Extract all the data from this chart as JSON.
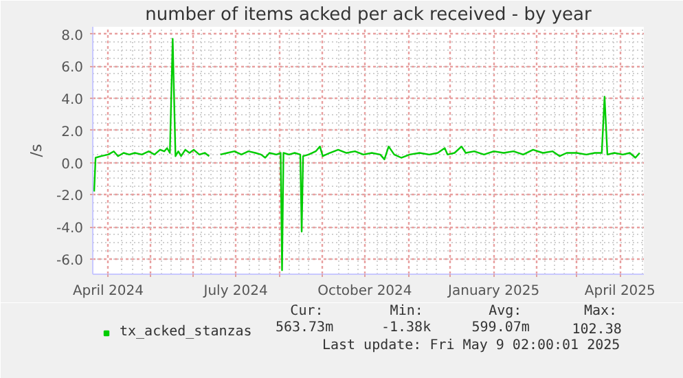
{
  "chart_data": {
    "type": "line",
    "title": "number of items acked per ack received - by year",
    "ylabel": "/s",
    "xlim": [
      "2024-03-21",
      "2025-04-18"
    ],
    "ylim": [
      -6.95,
      8.45
    ],
    "xticks": [
      {
        "value": "2024-04-01",
        "label": "April 2024"
      },
      {
        "value": "2024-05-01",
        "label": null
      },
      {
        "value": "2024-06-01",
        "label": null
      },
      {
        "value": "2024-07-01",
        "label": "July 2024"
      },
      {
        "value": "2024-08-01",
        "label": null
      },
      {
        "value": "2024-09-01",
        "label": null
      },
      {
        "value": "2024-10-01",
        "label": "October 2024"
      },
      {
        "value": "2024-11-01",
        "label": null
      },
      {
        "value": "2024-12-01",
        "label": null
      },
      {
        "value": "2025-01-01",
        "label": "January 2025"
      },
      {
        "value": "2025-02-01",
        "label": null
      },
      {
        "value": "2025-03-01",
        "label": null
      },
      {
        "value": "2025-04-01",
        "label": "April 2025"
      }
    ],
    "yticks": [
      {
        "value": -6,
        "label": "-6.0"
      },
      {
        "value": -4,
        "label": "-4.0"
      },
      {
        "value": -2,
        "label": "-2.0"
      },
      {
        "value": 0,
        "label": "0.0"
      },
      {
        "value": 2,
        "label": "2.0"
      },
      {
        "value": 4,
        "label": "4.0"
      },
      {
        "value": 6,
        "label": "6.0"
      },
      {
        "value": 8,
        "label": "8.0"
      }
    ],
    "grid": true,
    "legend": "bottom left",
    "x": [
      "2024-03-22",
      "2024-03-23",
      "2024-03-27",
      "2024-04-01",
      "2024-04-05",
      "2024-04-08",
      "2024-04-12",
      "2024-04-16",
      "2024-04-20",
      "2024-04-25",
      "2024-04-30",
      "2024-05-04",
      "2024-05-08",
      "2024-05-11",
      "2024-05-13",
      "2024-05-15",
      "2024-05-17",
      "2024-05-19",
      "2024-05-21",
      "2024-05-23",
      "2024-05-26",
      "2024-05-29",
      "2024-06-01",
      "2024-06-05",
      "2024-06-09",
      "2024-06-12",
      "2024-06-16",
      "2024-06-20",
      "2024-06-25",
      "2024-06-30",
      "2024-07-05",
      "2024-07-10",
      "2024-07-15",
      "2024-07-19",
      "2024-07-22",
      "2024-07-25",
      "2024-07-30",
      "2024-08-02",
      "2024-08-03",
      "2024-08-04",
      "2024-08-08",
      "2024-08-12",
      "2024-08-16",
      "2024-08-17",
      "2024-08-18",
      "2024-08-22",
      "2024-08-27",
      "2024-08-30",
      "2024-09-01",
      "2024-09-06",
      "2024-09-12",
      "2024-09-18",
      "2024-09-24",
      "2024-09-30",
      "2024-10-06",
      "2024-10-12",
      "2024-10-15",
      "2024-10-18",
      "2024-10-22",
      "2024-10-27",
      "2024-11-02",
      "2024-11-09",
      "2024-11-16",
      "2024-11-22",
      "2024-11-27",
      "2024-11-29",
      "2024-12-04",
      "2024-12-09",
      "2024-12-12",
      "2024-12-18",
      "2024-12-25",
      "2025-01-01",
      "2025-01-08",
      "2025-01-15",
      "2025-01-22",
      "2025-01-29",
      "2025-02-05",
      "2025-02-12",
      "2025-02-17",
      "2025-02-22",
      "2025-03-01",
      "2025-03-08",
      "2025-03-14",
      "2025-03-19",
      "2025-03-21",
      "2025-03-23",
      "2025-03-28",
      "2025-04-03",
      "2025-04-08",
      "2025-04-12",
      "2025-04-15"
    ],
    "series": [
      {
        "name": "tx_acked_stanzas",
        "color": "#00cc00",
        "values": [
          -1.8,
          0.3,
          0.4,
          0.5,
          0.7,
          0.4,
          0.6,
          0.5,
          0.6,
          0.5,
          0.7,
          0.5,
          0.8,
          0.7,
          0.9,
          0.6,
          7.7,
          0.4,
          0.7,
          0.4,
          0.8,
          0.6,
          0.8,
          0.5,
          0.6,
          0.4,
          null,
          0.5,
          0.6,
          0.7,
          0.5,
          0.7,
          0.6,
          0.5,
          0.3,
          0.6,
          0.5,
          0.6,
          -6.7,
          0.6,
          0.5,
          0.6,
          0.5,
          -4.3,
          0.4,
          0.5,
          0.7,
          1.0,
          0.4,
          0.6,
          0.8,
          0.6,
          0.7,
          0.5,
          0.6,
          0.5,
          0.2,
          1.0,
          0.5,
          0.3,
          0.5,
          0.6,
          0.5,
          0.6,
          0.9,
          0.5,
          0.6,
          1.0,
          0.6,
          0.7,
          0.5,
          0.7,
          0.6,
          0.7,
          0.5,
          0.8,
          0.6,
          0.7,
          0.4,
          0.6,
          0.6,
          0.5,
          0.6,
          0.6,
          4.1,
          0.5,
          0.6,
          0.5,
          0.6,
          0.3,
          0.6
        ]
      }
    ],
    "annotations": [
      "Cur:",
      "Min:",
      "Avg:",
      "Max:",
      "563.73m",
      "-1.38k",
      "599.07m",
      "102.38",
      "Last update: Fri May  9 02:00:01 2025"
    ]
  }
}
